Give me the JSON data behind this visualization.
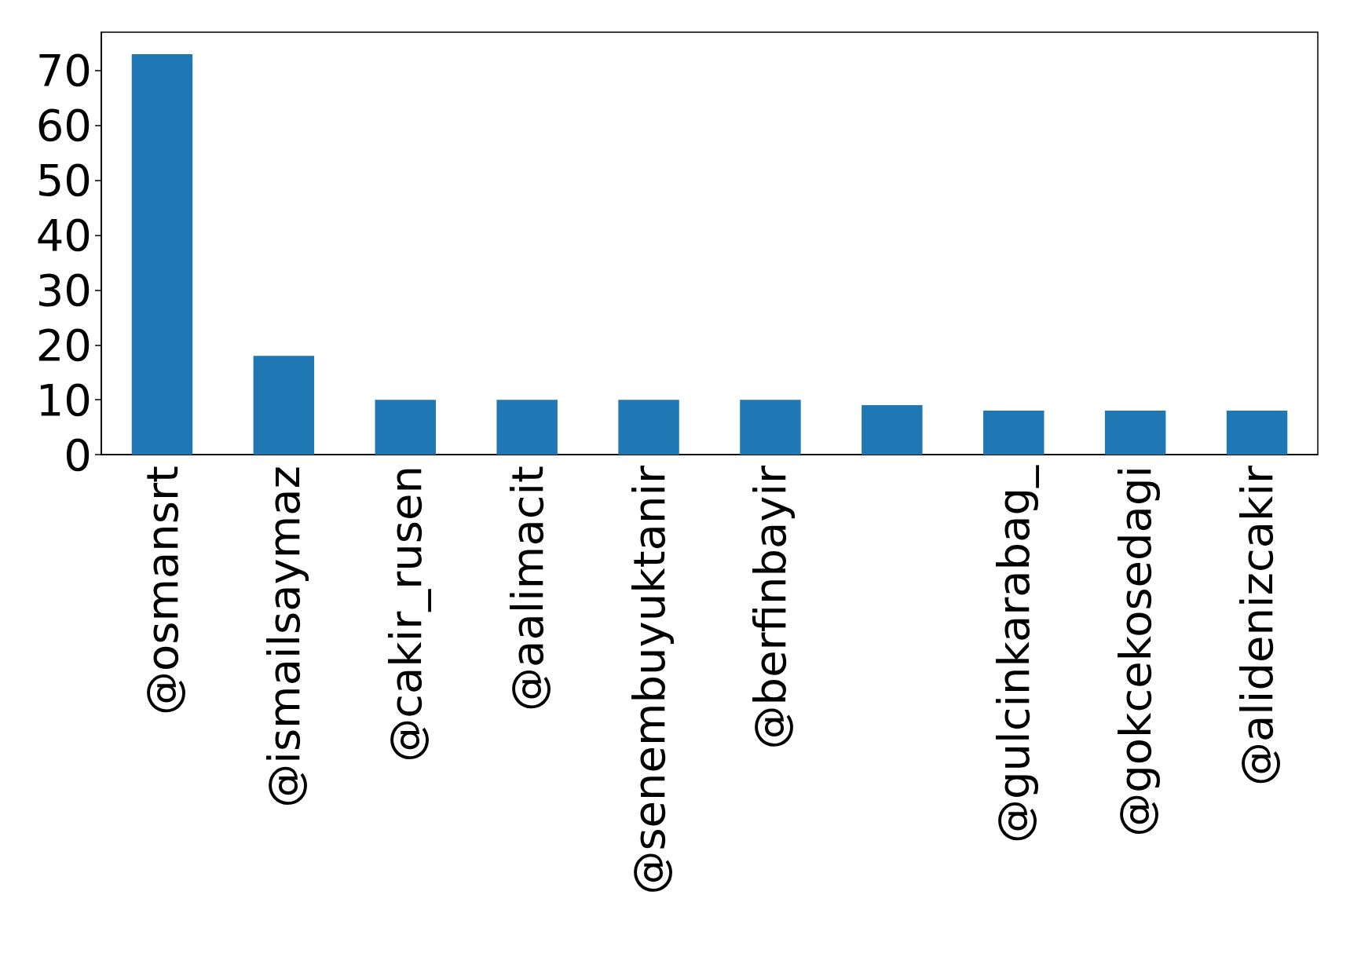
{
  "chart_data": {
    "type": "bar",
    "categories": [
      "@osmansrt",
      "@ismailsaymaz",
      "@cakir_rusen",
      "@aalimacit",
      "@senembuyuktanir",
      "@berfinbayir",
      null,
      "@gulcinkarabag_",
      "@gokcekosedagi",
      "@alidenizcakir"
    ],
    "values": [
      73,
      18,
      10,
      10,
      10,
      10,
      9,
      8,
      8,
      8
    ],
    "color": "#1f77b4",
    "ylim": [
      0,
      77
    ],
    "yticks": [
      0,
      10,
      20,
      30,
      40,
      50,
      60,
      70
    ],
    "grid": false
  }
}
